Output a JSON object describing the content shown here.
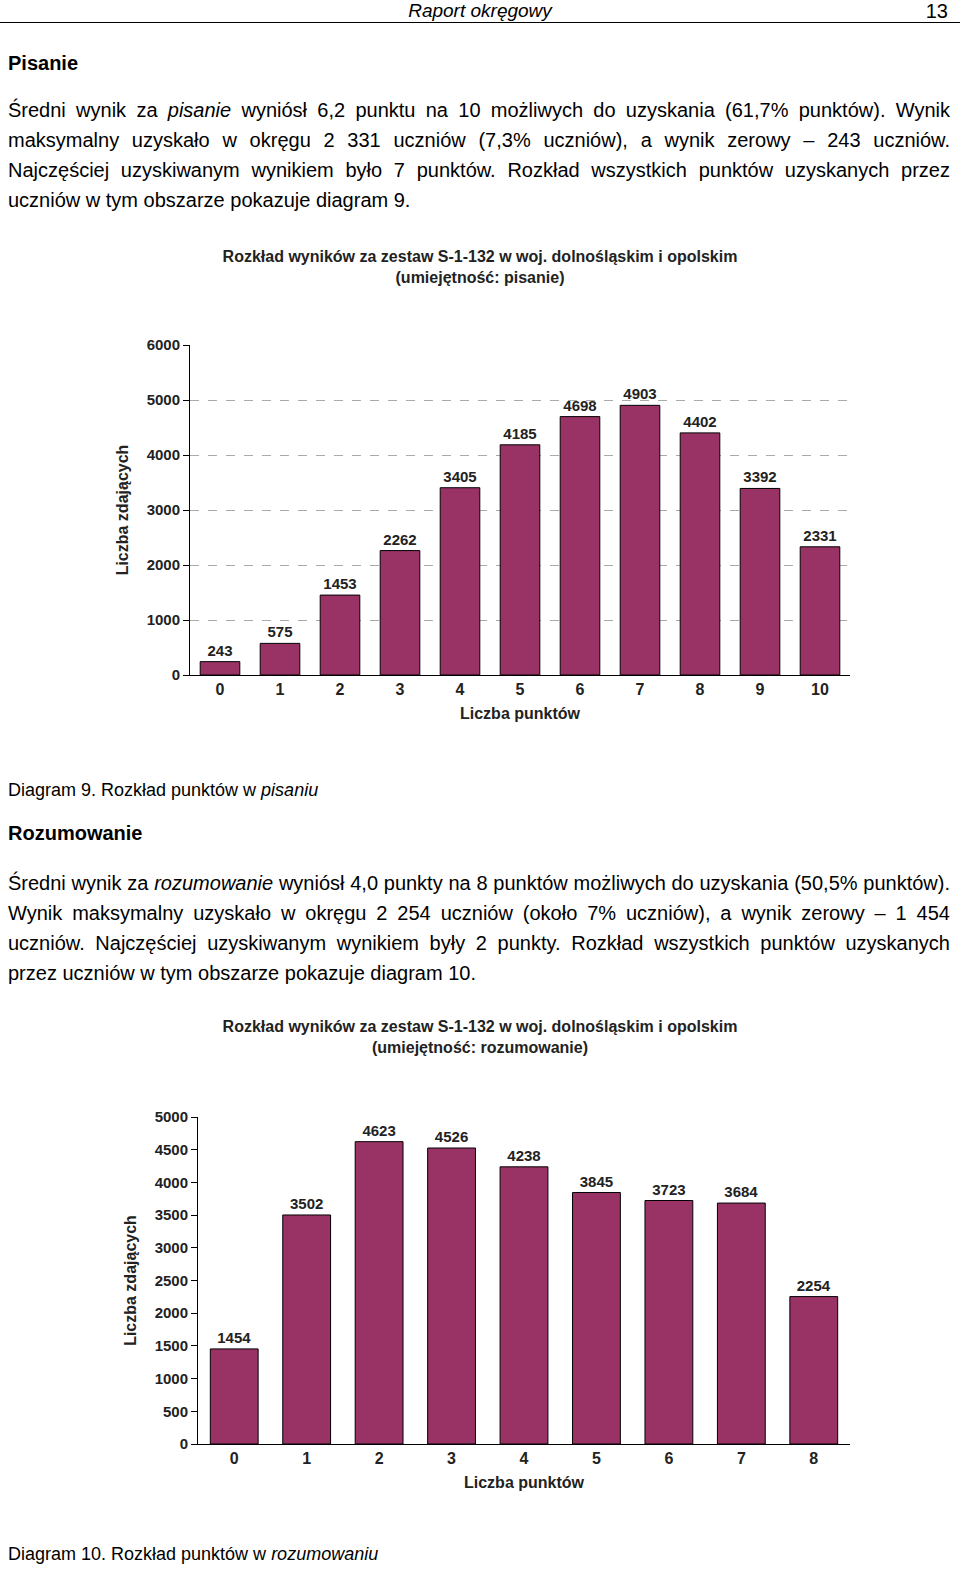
{
  "header": {
    "title": "Raport okręgowy",
    "page": "13"
  },
  "sections": [
    {
      "heading": "Pisanie",
      "paragraph": [
        {
          "text": "Średni wynik za "
        },
        {
          "text": "pisanie",
          "italic": true
        },
        {
          "text": " wyniósł 6,2 punktu na 10 możliwych do uzyskania (61,7% punktów). Wynik maksymalny uzyskało w okręgu 2 331 uczniów (7,3% uczniów), a wynik zerowy – 243 uczniów. Najczęściej uzyskiwanym wynikiem było 7 punktów. Rozkład wszystkich punktów uzyskanych przez uczniów w tym obszarze pokazuje diagram 9."
        }
      ],
      "caption": [
        {
          "text": "Diagram 9. Rozkład punktów w "
        },
        {
          "text": "pisaniu",
          "italic": true
        }
      ]
    },
    {
      "heading": "Rozumowanie",
      "paragraph": [
        {
          "text": "Średni wynik za "
        },
        {
          "text": "rozumowanie",
          "italic": true
        },
        {
          "text": " wyniósł 4,0 punkty na 8 punktów możliwych do uzyskania (50,5% punktów). Wynik maksymalny uzyskało w okręgu 2 254 uczniów (około 7% uczniów), a wynik zerowy – 1 454 uczniów. Najczęściej uzyskiwanym wynikiem były 2 punkty. Rozkład wszystkich punktów uzyskanych przez uczniów w tym obszarze pokazuje diagram 10."
        }
      ],
      "caption": [
        {
          "text": "Diagram 10. Rozkład punktów w "
        },
        {
          "text": "rozumowaniu",
          "italic": true
        }
      ]
    }
  ],
  "chart_data": [
    {
      "type": "bar",
      "title": "Rozkład wyników za zestaw S-1-132 w woj. dolnośląskim i opolskim",
      "subtitle": "(umiejętność: pisanie)",
      "x_label": "Liczba punktów",
      "y_label": "Liczba zdających",
      "categories": [
        "0",
        "1",
        "2",
        "3",
        "4",
        "5",
        "6",
        "7",
        "8",
        "9",
        "10"
      ],
      "values": [
        243,
        575,
        1453,
        2262,
        3405,
        4185,
        4698,
        4903,
        4402,
        3392,
        2331
      ],
      "color": "#993366",
      "ylim": [
        0,
        6000
      ],
      "yticks": [
        0,
        1000,
        2000,
        3000,
        4000,
        5000,
        6000
      ],
      "grid": true,
      "data_labels": true
    },
    {
      "type": "bar",
      "title": "Rozkład wyników za zestaw S-1-132 w woj. dolnośląskim i opolskim",
      "subtitle": "(umiejętność: rozumowanie)",
      "x_label": "Liczba punktów",
      "y_label": "Liczba zdających",
      "categories": [
        "0",
        "1",
        "2",
        "3",
        "4",
        "5",
        "6",
        "7",
        "8"
      ],
      "values": [
        1454,
        3502,
        4623,
        4526,
        4238,
        3845,
        3723,
        3684,
        2254
      ],
      "color": "#993366",
      "ylim": [
        0,
        5000
      ],
      "yticks": [
        0,
        500,
        1000,
        1500,
        2000,
        2500,
        3000,
        3500,
        4000,
        4500,
        5000
      ],
      "grid": false,
      "data_labels": true
    }
  ]
}
